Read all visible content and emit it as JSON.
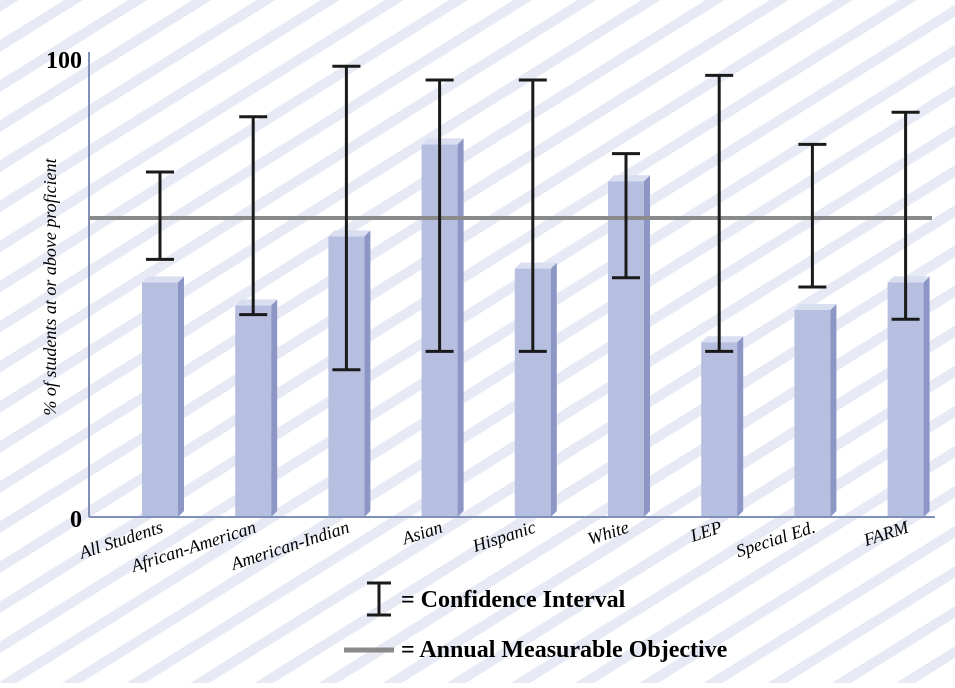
{
  "chart_data": {
    "type": "bar",
    "title": "",
    "xlabel": "",
    "ylabel": "% of students at or above proficient",
    "ylim": [
      0,
      100
    ],
    "yticks": [
      {
        "value": 0,
        "label": "0"
      },
      {
        "value": 100,
        "label": "100"
      }
    ],
    "categories": [
      "All Students",
      "African-American",
      "American-Indian",
      "Asian",
      "Hispanic",
      "White",
      "LEP",
      "Special Ed.",
      "FARM"
    ],
    "values": [
      51,
      46,
      61,
      81,
      54,
      73,
      38,
      45,
      51
    ],
    "confidence_intervals": [
      [
        56,
        75
      ],
      [
        44,
        87
      ],
      [
        32,
        98
      ],
      [
        36,
        95
      ],
      [
        36,
        95
      ],
      [
        52,
        79
      ],
      [
        36,
        96
      ],
      [
        50,
        81
      ],
      [
        43,
        88
      ]
    ],
    "annual_measurable_objective": 65,
    "colors": {
      "bar": "#b6bfe0",
      "bar_side": "#8d97c6",
      "bar_top": "#d9def1",
      "objective_line": "#8a8a8a",
      "error_bar": "#1a1a1a",
      "axis": "#8090b8",
      "stripes": "#e7eaf5"
    },
    "legend": {
      "placement": "bottom-center",
      "items": [
        {
          "symbol": "confidence-interval",
          "label": "= Confidence Interval"
        },
        {
          "symbol": "objective-line",
          "label": "= Annual Measurable Objective"
        }
      ]
    }
  }
}
